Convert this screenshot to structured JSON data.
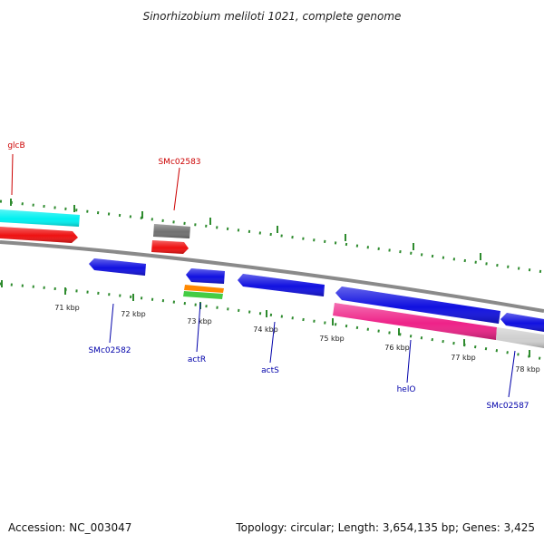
{
  "title": "Sinorhizobium meliloti 1021, complete genome",
  "footer": {
    "accession": "Accession: NC_003047",
    "summary": "Topology: circular; Length: 3,654,135 bp; Genes: 3,425"
  },
  "colors": {
    "backbone": "#8a8a8a",
    "ticks": "#2e8b2e",
    "blue": "#1010e0",
    "cyan": "#00f0f0",
    "red": "#ee1111",
    "gray": "#707070",
    "pink": "#ee2288",
    "lightgray": "#cfcfcf",
    "orange": "#ff8800",
    "green": "#44cc44",
    "label_red": "#cc0000",
    "label_blue": "#0000aa"
  },
  "kbp_labels": [
    "71 kbp",
    "72 kbp",
    "73 kbp",
    "74 kbp",
    "75 kbp",
    "76 kbp",
    "77 kbp",
    "78 kbp"
  ],
  "gene_labels": {
    "glcB": "glcB",
    "SMc02583": "SMc02583",
    "SMc02582": "SMc02582",
    "actR": "actR",
    "actS": "actS",
    "helO": "helO",
    "SMc02587": "SMc02587"
  }
}
